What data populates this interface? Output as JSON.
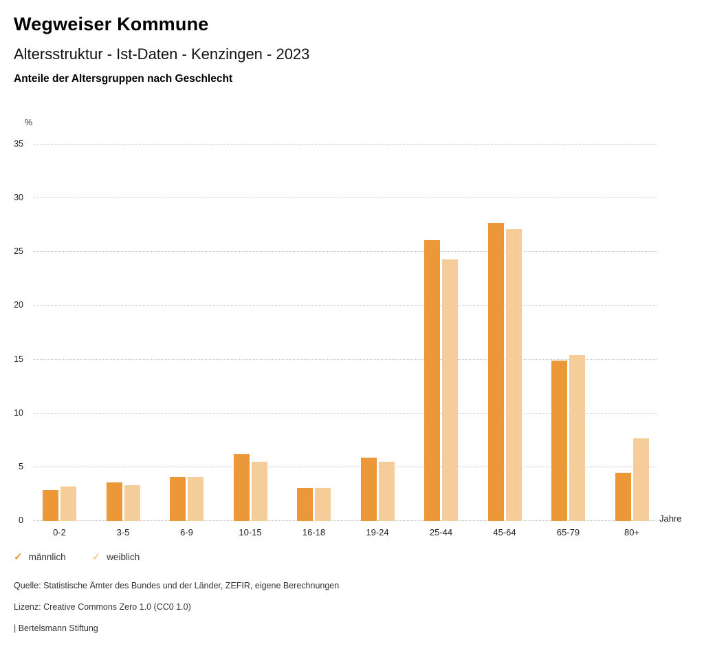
{
  "header": {
    "title": "Wegweiser Kommune",
    "subtitle": "Altersstruktur - Ist-Daten - Kenzingen - 2023",
    "description": "Anteile der Altersgruppen nach Geschlecht"
  },
  "chart_data": {
    "type": "bar",
    "title": "Anteile der Altersgruppen nach Geschlecht",
    "unit_label": "%",
    "x_axis_label": "Jahre",
    "categories": [
      "0-2",
      "3-5",
      "6-9",
      "10-15",
      "16-18",
      "19-24",
      "25-44",
      "45-64",
      "65-79",
      "80+"
    ],
    "series": [
      {
        "name": "männlich",
        "color": "#EC9838",
        "values": [
          2.9,
          3.6,
          4.1,
          6.2,
          3.1,
          5.9,
          26.1,
          27.7,
          14.9,
          4.5
        ]
      },
      {
        "name": "weiblich",
        "color": "#F5CD9B",
        "values": [
          3.2,
          3.3,
          4.1,
          5.5,
          3.1,
          5.5,
          24.3,
          27.1,
          15.4,
          7.7
        ]
      }
    ],
    "ylim": [
      0,
      35
    ],
    "yticks": [
      0,
      5,
      10,
      15,
      20,
      25,
      30,
      35
    ],
    "grid": "horizontal-dotted",
    "legend_position": "bottom-left"
  },
  "legend": {
    "check_icon": "✓",
    "items": [
      {
        "label": "männlich",
        "color": "#EC9838"
      },
      {
        "label": "weiblich",
        "color": "#F5CD9B"
      }
    ]
  },
  "footer": {
    "source": "Quelle: Statistische Ämter des Bundes und der Länder, ZEFIR, eigene Berechnungen",
    "license": "Lizenz: Creative Commons Zero 1.0 (CC0 1.0)",
    "attribution": "| Bertelsmann Stiftung"
  }
}
